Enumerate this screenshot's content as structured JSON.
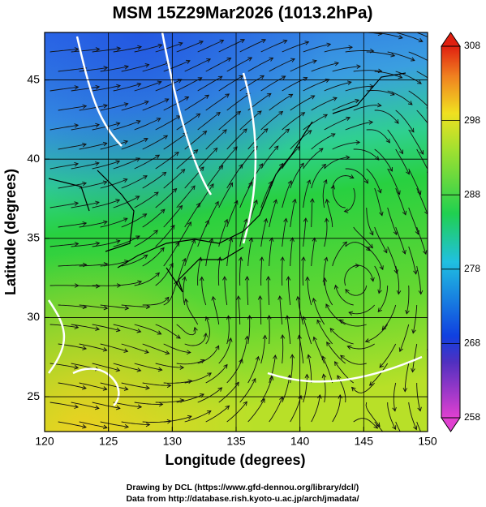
{
  "title": "MSM 15Z29Mar2026 (1013.2hPa)",
  "x_axis": {
    "label": "Longitude (degrees)",
    "lim": [
      120,
      150
    ],
    "ticks": [
      120,
      125,
      130,
      135,
      140,
      145,
      150
    ]
  },
  "y_axis": {
    "label": "Latitude  (degrees)",
    "lim": [
      22.8,
      48
    ],
    "ticks": [
      25,
      30,
      35,
      40,
      45
    ]
  },
  "colorbar": {
    "lim": [
      258,
      308
    ],
    "ticks": [
      258,
      268,
      278,
      288,
      298,
      308
    ]
  },
  "credits": [
    "Drawing by DCL (https://www.gfd-dennou.org/library/dcl/)",
    "Data from http://database.rish.kyoto-u.ac.jp/arch/jmadata/"
  ]
}
